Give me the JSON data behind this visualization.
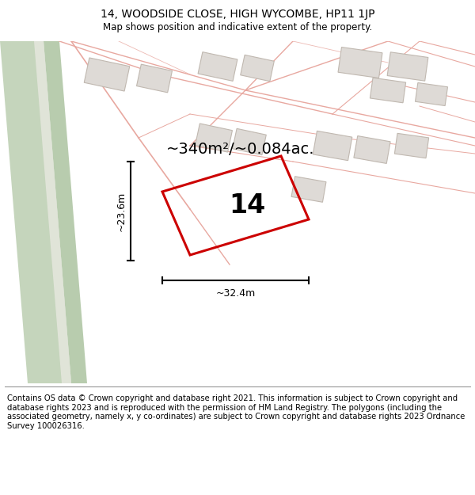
{
  "title": "14, WOODSIDE CLOSE, HIGH WYCOMBE, HP11 1JP",
  "subtitle": "Map shows position and indicative extent of the property.",
  "footer": "Contains OS data © Crown copyright and database right 2021. This information is subject to Crown copyright and database rights 2023 and is reproduced with the permission of HM Land Registry. The polygons (including the associated geometry, namely x, y co-ordinates) are subject to Crown copyright and database rights 2023 Ordnance Survey 100026316.",
  "area_text": "~340m²/~0.084ac.",
  "number_label": "14",
  "dim_width": "~32.4m",
  "dim_height": "~23.6m",
  "map_bg": "#f2ede8",
  "road_green": "#c5d5bc",
  "road_green2": "#b8ccae",
  "white_stripe": "#e8e4df",
  "plot_outline_color": "#cc0000",
  "building_fill": "#dedad6",
  "building_edge": "#c0b8b0",
  "road_line_color": "#e8a8a0",
  "title_fontsize": 10,
  "subtitle_fontsize": 8.5,
  "footer_fontsize": 7.2,
  "area_fontsize": 14,
  "label_fontsize": 24,
  "dim_fontsize": 9
}
